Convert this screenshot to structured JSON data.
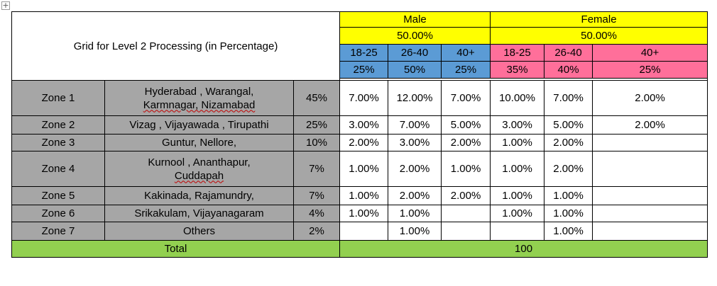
{
  "title": "Grid for Level 2 Processing (in Percentage)",
  "male": {
    "label": "Male",
    "share": "50.00%"
  },
  "female": {
    "label": "Female",
    "share": "50.00%"
  },
  "male_groups": [
    {
      "age": "18-25",
      "pct": "25%"
    },
    {
      "age": "26-40",
      "pct": "50%"
    },
    {
      "age": "40+",
      "pct": "25%"
    }
  ],
  "female_groups": [
    {
      "age": "18-25",
      "pct": "35%"
    },
    {
      "age": "26-40",
      "pct": "40%"
    },
    {
      "age": "40+",
      "pct": "25%"
    }
  ],
  "zones": [
    {
      "zone": "Zone 1",
      "cities_line1": "Hyderabad , Warangal,",
      "cities_line2": "Karmnagar, Nizamabad",
      "share": "45%",
      "values": [
        "7.00%",
        "12.00%",
        "7.00%",
        "10.00%",
        "7.00%",
        "2.00%"
      ]
    },
    {
      "zone": "Zone 2",
      "cities_line1": "Vizag , Vijayawada , Tirupathi",
      "cities_line2": "",
      "share": "25%",
      "values": [
        "3.00%",
        "7.00%",
        "5.00%",
        "3.00%",
        "5.00%",
        "2.00%"
      ]
    },
    {
      "zone": "Zone 3",
      "cities_line1": "Guntur, Nellore,",
      "cities_line2": "",
      "share": "10%",
      "values": [
        "2.00%",
        "3.00%",
        "2.00%",
        "1.00%",
        "2.00%",
        ""
      ]
    },
    {
      "zone": "Zone 4",
      "cities_line1": "Kurnool , Ananthapur,",
      "cities_line2": "Cuddapah",
      "share": "7%",
      "values": [
        "1.00%",
        "2.00%",
        "1.00%",
        "1.00%",
        "2.00%",
        ""
      ]
    },
    {
      "zone": "Zone 5",
      "cities_line1": "Kakinada, Rajamundry,",
      "cities_line2": "",
      "share": "7%",
      "values": [
        "1.00%",
        "2.00%",
        "2.00%",
        "1.00%",
        "1.00%",
        ""
      ]
    },
    {
      "zone": "Zone 6",
      "cities_line1": "Srikakulam, Vijayanagaram",
      "cities_line2": "",
      "share": "4%",
      "values": [
        "1.00%",
        "1.00%",
        "",
        "1.00%",
        "1.00%",
        ""
      ]
    },
    {
      "zone": "Zone 7",
      "cities_line1": "Others",
      "cities_line2": "",
      "share": "2%",
      "values": [
        "",
        "1.00%",
        "",
        "",
        "1.00%",
        ""
      ]
    }
  ],
  "total": {
    "label": "Total",
    "value": "100"
  }
}
